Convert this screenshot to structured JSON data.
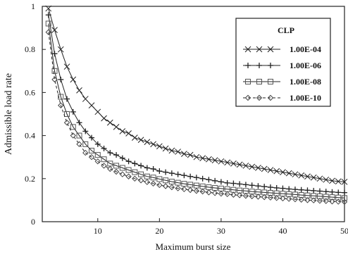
{
  "chart_data": {
    "type": "line",
    "title": "",
    "xlabel": "Maximum burst size",
    "ylabel": "Admissible load rate",
    "xlim": [
      1,
      50
    ],
    "ylim": [
      0,
      1
    ],
    "xticks": [
      10,
      20,
      30,
      40,
      50
    ],
    "yticks": [
      0,
      0.2,
      0.4,
      0.6,
      0.8,
      1
    ],
    "ytick_labels": [
      "0",
      "0.2",
      "0.4",
      "0.6",
      "0.8",
      "1"
    ],
    "grid": false,
    "legend": {
      "title": "CLP",
      "position": "top-right"
    },
    "x": [
      2,
      3,
      4,
      5,
      6,
      7,
      8,
      9,
      10,
      11,
      12,
      13,
      14,
      15,
      16,
      17,
      18,
      19,
      20,
      21,
      22,
      23,
      24,
      25,
      26,
      27,
      28,
      29,
      30,
      31,
      32,
      33,
      34,
      35,
      36,
      37,
      38,
      39,
      40,
      41,
      42,
      43,
      44,
      45,
      46,
      47,
      48,
      49,
      50
    ],
    "series": [
      {
        "name": "1.00E-04",
        "marker": "cross",
        "line": "solid",
        "values": [
          0.99,
          0.89,
          0.8,
          0.72,
          0.66,
          0.61,
          0.57,
          0.54,
          0.51,
          0.48,
          0.46,
          0.44,
          0.42,
          0.41,
          0.39,
          0.38,
          0.37,
          0.36,
          0.35,
          0.34,
          0.33,
          0.325,
          0.315,
          0.31,
          0.3,
          0.295,
          0.29,
          0.285,
          0.28,
          0.275,
          0.27,
          0.265,
          0.26,
          0.255,
          0.25,
          0.245,
          0.24,
          0.235,
          0.23,
          0.225,
          0.22,
          0.215,
          0.21,
          0.205,
          0.2,
          0.195,
          0.19,
          0.187,
          0.185
        ]
      },
      {
        "name": "1.00E-06",
        "marker": "plus",
        "line": "solid",
        "values": [
          0.96,
          0.78,
          0.66,
          0.57,
          0.51,
          0.46,
          0.42,
          0.39,
          0.36,
          0.34,
          0.32,
          0.31,
          0.295,
          0.28,
          0.27,
          0.26,
          0.25,
          0.245,
          0.235,
          0.23,
          0.225,
          0.22,
          0.215,
          0.21,
          0.205,
          0.2,
          0.195,
          0.19,
          0.185,
          0.18,
          0.178,
          0.175,
          0.172,
          0.169,
          0.166,
          0.163,
          0.16,
          0.157,
          0.155,
          0.152,
          0.15,
          0.148,
          0.146,
          0.144,
          0.142,
          0.14,
          0.138,
          0.136,
          0.135
        ]
      },
      {
        "name": "1.00E-08",
        "marker": "square",
        "line": "solid",
        "values": [
          0.92,
          0.7,
          0.58,
          0.5,
          0.44,
          0.4,
          0.36,
          0.33,
          0.31,
          0.29,
          0.27,
          0.26,
          0.25,
          0.24,
          0.23,
          0.22,
          0.21,
          0.205,
          0.198,
          0.192,
          0.186,
          0.181,
          0.176,
          0.172,
          0.168,
          0.164,
          0.16,
          0.157,
          0.154,
          0.151,
          0.148,
          0.145,
          0.143,
          0.14,
          0.138,
          0.136,
          0.134,
          0.132,
          0.13,
          0.128,
          0.126,
          0.124,
          0.122,
          0.12,
          0.118,
          0.116,
          0.114,
          0.112,
          0.11
        ]
      },
      {
        "name": "1.00E-10",
        "marker": "diamond",
        "line": "dashed",
        "values": [
          0.88,
          0.66,
          0.54,
          0.46,
          0.4,
          0.36,
          0.32,
          0.3,
          0.28,
          0.26,
          0.245,
          0.232,
          0.22,
          0.21,
          0.2,
          0.192,
          0.184,
          0.177,
          0.17,
          0.165,
          0.16,
          0.155,
          0.151,
          0.147,
          0.143,
          0.14,
          0.136,
          0.133,
          0.13,
          0.128,
          0.125,
          0.123,
          0.12,
          0.118,
          0.116,
          0.114,
          0.112,
          0.11,
          0.108,
          0.106,
          0.104,
          0.102,
          0.1,
          0.099,
          0.097,
          0.096,
          0.094,
          0.093,
          0.092
        ]
      }
    ]
  }
}
